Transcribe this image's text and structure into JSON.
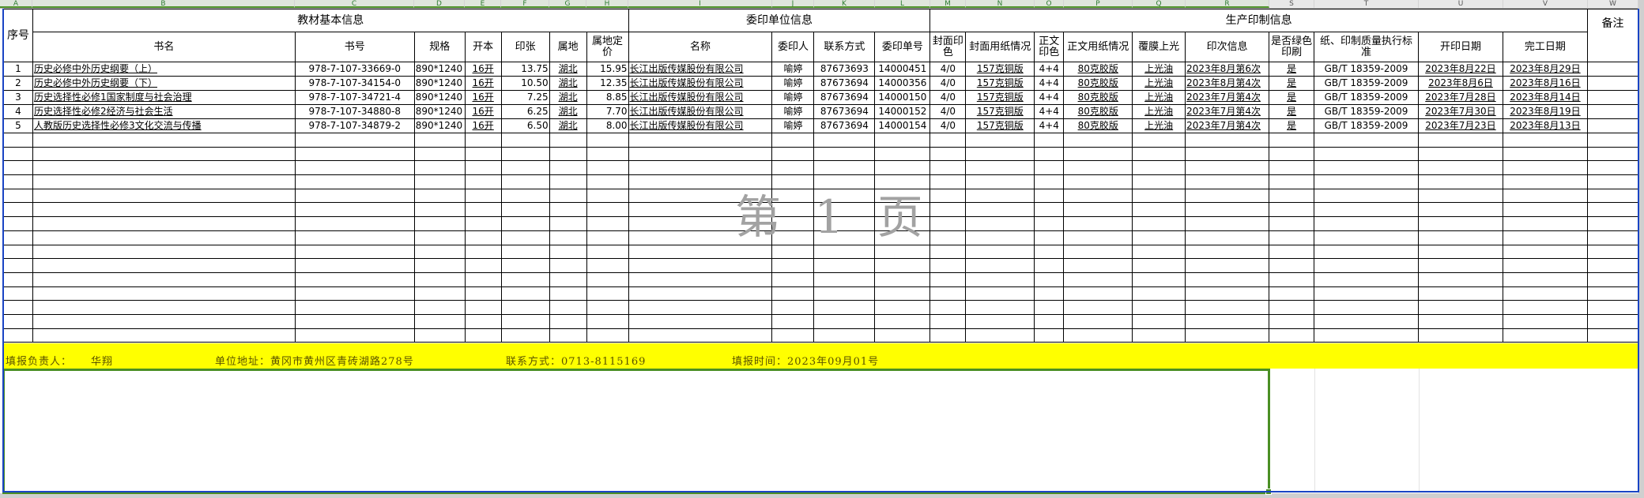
{
  "columns": [
    "A",
    "B",
    "C",
    "D",
    "E",
    "F",
    "G",
    "H",
    "I",
    "J",
    "K",
    "L",
    "M",
    "N",
    "O",
    "P",
    "Q",
    "R",
    "S",
    "T",
    "U",
    "V",
    "W"
  ],
  "selected_columns": [
    "A",
    "B",
    "C",
    "D",
    "E",
    "F",
    "G",
    "H",
    "I",
    "J",
    "K",
    "L",
    "M",
    "N",
    "O",
    "P",
    "Q",
    "R"
  ],
  "header": {
    "seq": "序号",
    "group_book": "教材基本信息",
    "group_client": "委印单位信息",
    "group_production": "生产印制信息",
    "remark": "备注",
    "sub": [
      "书名",
      "书号",
      "规格",
      "开本",
      "印张",
      "属地",
      "属地定价",
      "名称",
      "委印人",
      "联系方式",
      "委印单号",
      "封面印色",
      "封面用纸情况",
      "正文印色",
      "正文用纸情况",
      "覆膜上光",
      "印次信息",
      "是否绿色印刷",
      "纸、印制质量执行标准",
      "开印日期",
      "完工日期"
    ]
  },
  "rows": [
    [
      "1",
      "历史必修中外历史纲要（上）",
      "978-7-107-33669-0",
      "890*1240",
      "16开",
      "13.75",
      "湖北",
      "15.95",
      "长江出版传媒股份有限公司",
      "喻婷",
      "87673693",
      "14000451",
      "4/0",
      "157克铜版",
      "4+4",
      "80克胶版",
      "上光油",
      "2023年8月第6次",
      "是",
      "GB/T 18359-2009",
      "2023年8月22日",
      "2023年8月29日",
      ""
    ],
    [
      "2",
      "历史必修中外历史纲要（下）",
      "978-7-107-34154-0",
      "890*1240",
      "16开",
      "10.50",
      "湖北",
      "12.35",
      "长江出版传媒股份有限公司",
      "喻婷",
      "87673694",
      "14000356",
      "4/0",
      "157克铜版",
      "4+4",
      "80克胶版",
      "上光油",
      "2023年8月第4次",
      "是",
      "GB/T 18359-2009",
      "2023年8月6日",
      "2023年8月16日",
      ""
    ],
    [
      "3",
      "历史选择性必修1国家制度与社会治理",
      "978-7-107-34721-4",
      "890*1240",
      "16开",
      "7.25",
      "湖北",
      "8.85",
      "长江出版传媒股份有限公司",
      "喻婷",
      "87673694",
      "14000150",
      "4/0",
      "157克铜版",
      "4+4",
      "80克胶版",
      "上光油",
      "2023年7月第4次",
      "是",
      "GB/T 18359-2009",
      "2023年7月28日",
      "2023年8月14日",
      ""
    ],
    [
      "4",
      "历史选择性必修2经济与社会生活",
      "978-7-107-34880-8",
      "890*1240",
      "16开",
      "6.25",
      "湖北",
      "7.70",
      "长江出版传媒股份有限公司",
      "喻婷",
      "87673694",
      "14000152",
      "4/0",
      "157克铜版",
      "4+4",
      "80克胶版",
      "上光油",
      "2023年7月第4次",
      "是",
      "GB/T 18359-2009",
      "2023年7月30日",
      "2023年8月19日",
      ""
    ],
    [
      "5",
      "人教版历史选择性必修3文化交流与传播",
      "978-7-107-34879-2",
      "890*1240",
      "16开",
      "6.50",
      "湖北",
      "8.00",
      "长江出版传媒股份有限公司",
      "喻婷",
      "87673694",
      "14000154",
      "4/0",
      "157克铜版",
      "4+4",
      "80克胶版",
      "上光油",
      "2023年7月第4次",
      "是",
      "GB/T 18359-2009",
      "2023年7月23日",
      "2023年8月13日",
      ""
    ]
  ],
  "footer": {
    "responsible_label": "填报负责人：",
    "responsible_name": "华翔",
    "address": "单位地址：黄冈市黄州区青砖湖路278号",
    "contact": "联系方式：0713-8115169",
    "date": "填报时间：2023年09月01号"
  },
  "watermark": "第 1 页",
  "colors": {
    "footer_bg": "#ffff00",
    "selection": "#4a8f24",
    "print_frame": "#1a44c4"
  }
}
